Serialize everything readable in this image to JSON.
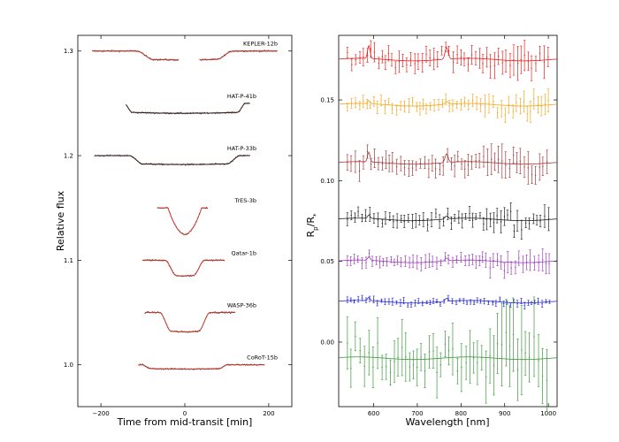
{
  "chart_data": [
    {
      "type": "scatter",
      "xlabel": "Time from mid-transit [min]",
      "ylabel": "Relative flux",
      "xlim": [
        -255,
        255
      ],
      "ylim": [
        0.96,
        1.315
      ],
      "xticks": [
        -200,
        0,
        200
      ],
      "yticks": [
        1.0,
        1.1,
        1.2,
        1.3
      ],
      "ytick_labels": [
        "1.0",
        "1.1",
        "1.2",
        "1.3"
      ],
      "series": [
        {
          "name": "KEPLER-12b",
          "offset": 1.3,
          "color": "#d42b1a",
          "t_total": 230,
          "t_flat": 150,
          "depth": 0.0085,
          "obs_range": [
            -220,
            220
          ],
          "gap": [
            -15,
            35
          ],
          "shape": "flat"
        },
        {
          "name": "HAT-P-41b",
          "offset": 1.25,
          "color": "#3a1010",
          "t_total": 290,
          "t_flat": 250,
          "depth": 0.0095,
          "obs_range": [
            -140,
            155
          ],
          "gap": null,
          "shape": "flat"
        },
        {
          "name": "HAT-P-33b",
          "offset": 1.2,
          "color": "#3a1010",
          "t_total": 265,
          "t_flat": 200,
          "depth": 0.0085,
          "obs_range": [
            -215,
            155
          ],
          "gap": null,
          "shape": "flat"
        },
        {
          "name": "TrES-3b",
          "offset": 1.15,
          "color": "#d42b1a",
          "t_total": 80,
          "t_flat": 0,
          "depth": 0.0255,
          "obs_range": [
            -65,
            55
          ],
          "gap": null,
          "shape": "v"
        },
        {
          "name": "Qatar-1b",
          "offset": 1.1,
          "color": "#d42b1a",
          "t_total": 95,
          "t_flat": 40,
          "depth": 0.015,
          "obs_range": [
            -100,
            95
          ],
          "gap": null,
          "shape": "u"
        },
        {
          "name": "WASP-36b",
          "offset": 1.05,
          "color": "#d42b1a",
          "t_total": 120,
          "t_flat": 65,
          "depth": 0.0185,
          "obs_range": [
            -95,
            120
          ],
          "gap": null,
          "shape": "u"
        },
        {
          "name": "CoRoT-15b",
          "offset": 1.0,
          "color": "#d42b1a",
          "t_total": 205,
          "t_flat": 160,
          "depth": 0.004,
          "obs_range": [
            -110,
            190
          ],
          "gap": null,
          "shape": "flat"
        }
      ]
    },
    {
      "type": "line",
      "xlabel": "Wavelength [nm]",
      "ylabel": "Rp/R*",
      "ylabel_main": "R",
      "ylabel_sub1": "p",
      "ylabel_mid": "/R",
      "ylabel_sub2": "*",
      "xlim": [
        520,
        1020
      ],
      "ylim": [
        -0.04,
        0.19
      ],
      "xticks": [
        600,
        700,
        800,
        900,
        1000
      ],
      "xtick_labels": [
        "600",
        "700",
        "800",
        "900",
        "1000"
      ],
      "yticks": [
        0.0,
        0.05,
        0.1,
        0.15
      ],
      "ytick_labels": [
        "0.00",
        "0.05",
        "0.10",
        "0.15"
      ],
      "series": [
        {
          "color": "#e8231f",
          "baseline": 0.175,
          "peaks": 0.008,
          "noise": "high_red"
        },
        {
          "color": "#f2a81f",
          "baseline": 0.147,
          "peaks": 0.002,
          "noise": "med"
        },
        {
          "color": "#a33a3a",
          "baseline": 0.111,
          "peaks": 0.006,
          "noise": "high_red"
        },
        {
          "color": "#222222",
          "baseline": 0.076,
          "peaks": 0.002,
          "noise": "med"
        },
        {
          "color": "#9b3fb8",
          "baseline": 0.05,
          "peaks": 0.002,
          "noise": "med"
        },
        {
          "color": "#2b2bd6",
          "baseline": 0.025,
          "peaks": 0.002,
          "noise": "low"
        },
        {
          "color": "#3a9a3a",
          "baseline": -0.01,
          "peaks": 0.0,
          "noise": "huge"
        }
      ]
    }
  ]
}
